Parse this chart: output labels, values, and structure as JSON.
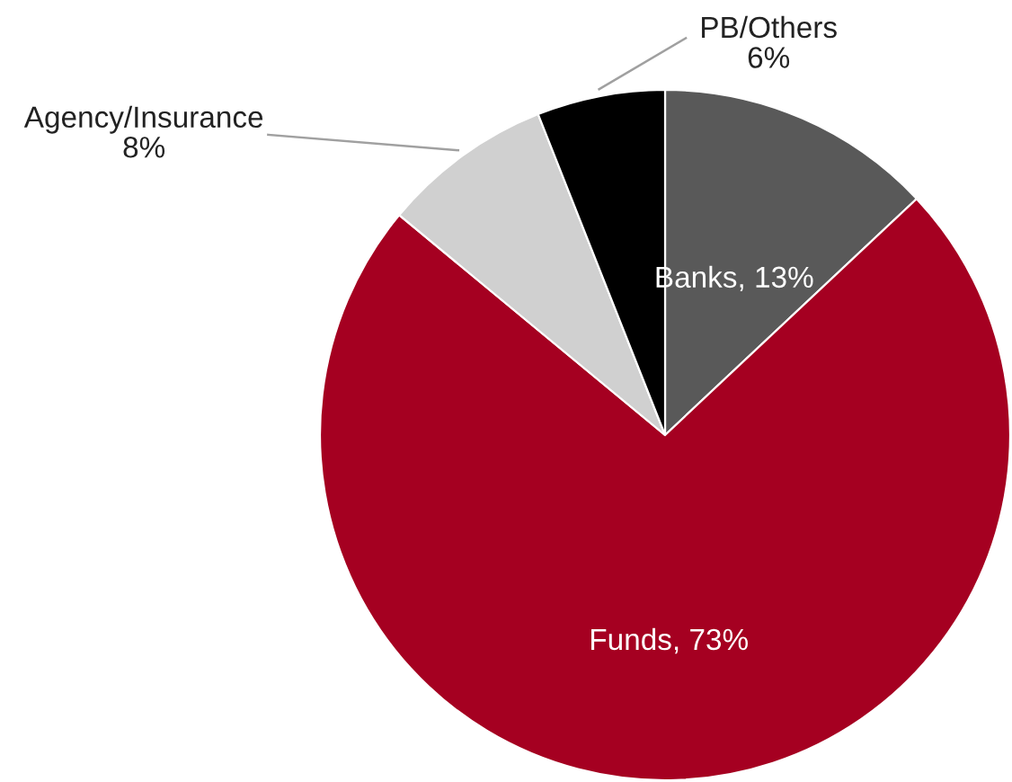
{
  "chart_data": {
    "type": "pie",
    "categories": [
      "Banks",
      "Funds",
      "Agency/Insurance",
      "PB/Others"
    ],
    "values": [
      13,
      73,
      8,
      6
    ],
    "value_labels": [
      "13%",
      "73%",
      "8%",
      "6%"
    ],
    "colors": [
      "#595959",
      "#a50021",
      "#d0d0d0",
      "#000000"
    ]
  }
}
